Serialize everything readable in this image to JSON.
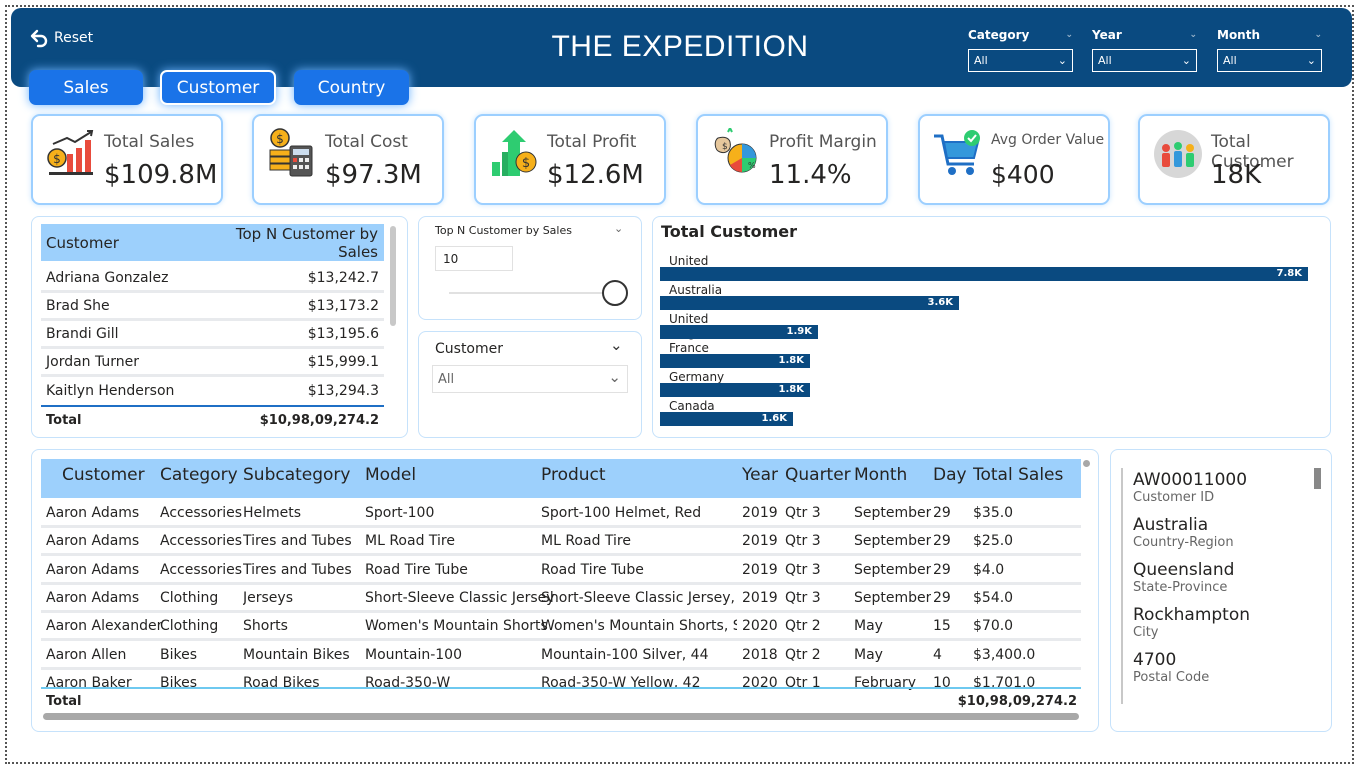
{
  "header": {
    "reset_label": "Reset",
    "title": "THE EXPEDITION",
    "filters": [
      {
        "label": "Category",
        "value": "All"
      },
      {
        "label": "Year",
        "value": "All"
      },
      {
        "label": "Month",
        "value": "All"
      }
    ]
  },
  "tabs": [
    {
      "label": "Sales",
      "active": false
    },
    {
      "label": "Customer",
      "active": true
    },
    {
      "label": "Country",
      "active": false
    }
  ],
  "kpis": [
    {
      "label": "Total Sales",
      "value": "$109.8M",
      "icon": "sales-chart-icon"
    },
    {
      "label": "Total Cost",
      "value": "$97.3M",
      "icon": "coins-calculator-icon"
    },
    {
      "label": "Total Profit",
      "value": "$12.6M",
      "icon": "profit-arrow-icon"
    },
    {
      "label": "Profit Margin",
      "value": "11.4%",
      "icon": "margin-pie-icon"
    },
    {
      "label": "Avg Order Value",
      "value": "$400",
      "icon": "shopping-cart-icon"
    },
    {
      "label": "Total Customer",
      "value": "18K",
      "icon": "people-group-icon"
    }
  ],
  "top_table": {
    "headers": [
      "Customer",
      "Top N Customer by Sales"
    ],
    "rows": [
      [
        "Adriana Gonzalez",
        "$13,242.7"
      ],
      [
        "Brad She",
        "$13,173.2"
      ],
      [
        "Brandi Gill",
        "$13,195.6"
      ],
      [
        "Jordan Turner",
        "$15,999.1"
      ],
      [
        "Kaitlyn Henderson",
        "$13,294.3"
      ]
    ],
    "total_label": "Total",
    "total_value": "$10,98,09,274.2"
  },
  "topn_slicer": {
    "label": "Top N Customer by Sales",
    "value": "10",
    "slider_level": 1.0
  },
  "customer_slicer": {
    "label": "Customer",
    "value": "All"
  },
  "chart_data": {
    "type": "bar",
    "title": "Total Customer",
    "categories": [
      "United States",
      "Australia",
      "United Kingdom",
      "France",
      "Germany",
      "Canada"
    ],
    "values": [
      7800,
      3600,
      1900,
      1800,
      1800,
      1600
    ],
    "data_labels": [
      "7.8K",
      "3.6K",
      "1.9K",
      "1.8K",
      "1.8K",
      "1.6K"
    ],
    "orientation": "horizontal",
    "color": "#0a4a80"
  },
  "detail_table": {
    "headers": [
      "Customer",
      "Category",
      "Subcategory",
      "Model",
      "Product",
      "Year",
      "Quarter",
      "Month",
      "Day",
      "Total Sales"
    ],
    "rows": [
      [
        "Aaron Adams",
        "Accessories",
        "Helmets",
        "Sport-100",
        "Sport-100 Helmet, Red",
        "2019",
        "Qtr 3",
        "September",
        "29",
        "$35.0"
      ],
      [
        "Aaron Adams",
        "Accessories",
        "Tires and Tubes",
        "ML Road Tire",
        "ML Road Tire",
        "2019",
        "Qtr 3",
        "September",
        "29",
        "$25.0"
      ],
      [
        "Aaron Adams",
        "Accessories",
        "Tires and Tubes",
        "Road Tire Tube",
        "Road Tire Tube",
        "2019",
        "Qtr 3",
        "September",
        "29",
        "$4.0"
      ],
      [
        "Aaron Adams",
        "Clothing",
        "Jerseys",
        "Short-Sleeve Classic Jersey",
        "Short-Sleeve Classic Jersey, M",
        "2019",
        "Qtr 3",
        "September",
        "29",
        "$54.0"
      ],
      [
        "Aaron Alexander",
        "Clothing",
        "Shorts",
        "Women's Mountain Shorts",
        "Women's Mountain Shorts, S",
        "2020",
        "Qtr 2",
        "May",
        "15",
        "$70.0"
      ],
      [
        "Aaron Allen",
        "Bikes",
        "Mountain Bikes",
        "Mountain-100",
        "Mountain-100 Silver, 44",
        "2018",
        "Qtr 2",
        "May",
        "4",
        "$3,400.0"
      ],
      [
        "Aaron Baker",
        "Bikes",
        "Road Bikes",
        "Road-350-W",
        "Road-350-W Yellow, 42",
        "2020",
        "Qtr 1",
        "February",
        "10",
        "$1,701.0"
      ]
    ],
    "total_label": "Total",
    "total_value": "$10,98,09,274.2"
  },
  "customer_card": [
    {
      "value": "AW00011000",
      "label": "Customer ID"
    },
    {
      "value": "Australia",
      "label": "Country-Region"
    },
    {
      "value": "Queensland",
      "label": "State-Province"
    },
    {
      "value": "Rockhampton",
      "label": "City"
    },
    {
      "value": "4700",
      "label": "Postal Code"
    }
  ],
  "colors": {
    "header": "#0a4a80",
    "tab": "#1a73e8",
    "table_header": "#9dd0fc",
    "card_border": "#9ccfff"
  }
}
